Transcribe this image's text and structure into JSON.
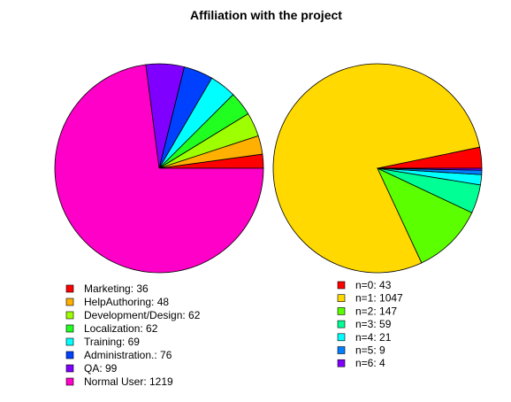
{
  "title": "Affiliation with the project",
  "chart_data": [
    {
      "type": "pie",
      "title": "Affiliation with the project",
      "slices": [
        {
          "label": "Marketing: 36",
          "value": 36,
          "color": "#ff0000"
        },
        {
          "label": "HelpAuthoring: 48",
          "value": 48,
          "color": "#ffb000"
        },
        {
          "label": "Development/Design: 62",
          "value": 62,
          "color": "#9dff00"
        },
        {
          "label": "Localization: 62",
          "value": 62,
          "color": "#20ff20"
        },
        {
          "label": "Training: 69",
          "value": 69,
          "color": "#00ffff"
        },
        {
          "label": "Administration.: 76",
          "value": 76,
          "color": "#0040ff"
        },
        {
          "label": "QA: 99",
          "value": 99,
          "color": "#8000ff"
        },
        {
          "label": "Normal User: 1219",
          "value": 1219,
          "color": "#ff00c8"
        }
      ]
    },
    {
      "type": "pie",
      "slices": [
        {
          "label": "n=0: 43",
          "value": 43,
          "color": "#ff0000"
        },
        {
          "label": "n=1: 1047",
          "value": 1047,
          "color": "#ffd900"
        },
        {
          "label": "n=2: 147",
          "value": 147,
          "color": "#5bff00"
        },
        {
          "label": "n=3: 59",
          "value": 59,
          "color": "#00ff94"
        },
        {
          "label": "n=4: 21",
          "value": 21,
          "color": "#00ffff"
        },
        {
          "label": "n=5: 9",
          "value": 9,
          "color": "#0080ff"
        },
        {
          "label": "n=6: 4",
          "value": 4,
          "color": "#8000ff"
        }
      ]
    }
  ]
}
